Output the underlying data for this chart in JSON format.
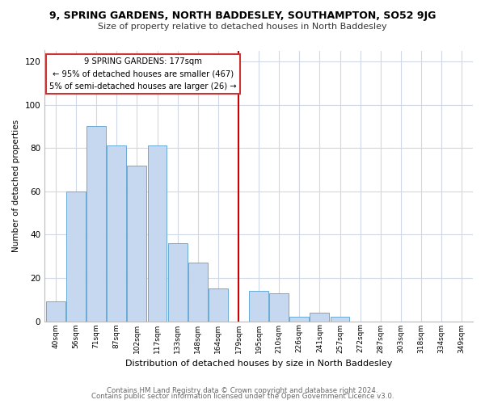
{
  "title": "9, SPRING GARDENS, NORTH BADDESLEY, SOUTHAMPTON, SO52 9JG",
  "subtitle": "Size of property relative to detached houses in North Baddesley",
  "xlabel": "Distribution of detached houses by size in North Baddesley",
  "ylabel": "Number of detached properties",
  "bar_labels": [
    "40sqm",
    "56sqm",
    "71sqm",
    "87sqm",
    "102sqm",
    "117sqm",
    "133sqm",
    "148sqm",
    "164sqm",
    "179sqm",
    "195sqm",
    "210sqm",
    "226sqm",
    "241sqm",
    "257sqm",
    "272sqm",
    "287sqm",
    "303sqm",
    "318sqm",
    "334sqm",
    "349sqm"
  ],
  "bar_values": [
    9,
    60,
    90,
    81,
    72,
    81,
    36,
    27,
    15,
    0,
    14,
    13,
    2,
    4,
    2,
    0,
    0,
    0,
    0,
    0,
    0
  ],
  "bar_color": "#c5d8f0",
  "bar_edge_color": "#6aaad4",
  "vline_x_index": 9,
  "vline_color": "#cc0000",
  "annotation_title": "9 SPRING GARDENS: 177sqm",
  "annotation_line1": "← 95% of detached houses are smaller (467)",
  "annotation_line2": "5% of semi-detached houses are larger (26) →",
  "annotation_box_color": "#ffffff",
  "annotation_box_edge": "#cc3333",
  "ylim": [
    0,
    125
  ],
  "yticks": [
    0,
    20,
    40,
    60,
    80,
    100,
    120
  ],
  "footer1": "Contains HM Land Registry data © Crown copyright and database right 2024.",
  "footer2": "Contains public sector information licensed under the Open Government Licence v3.0.",
  "background_color": "#ffffff",
  "grid_color": "#d0d8e8"
}
